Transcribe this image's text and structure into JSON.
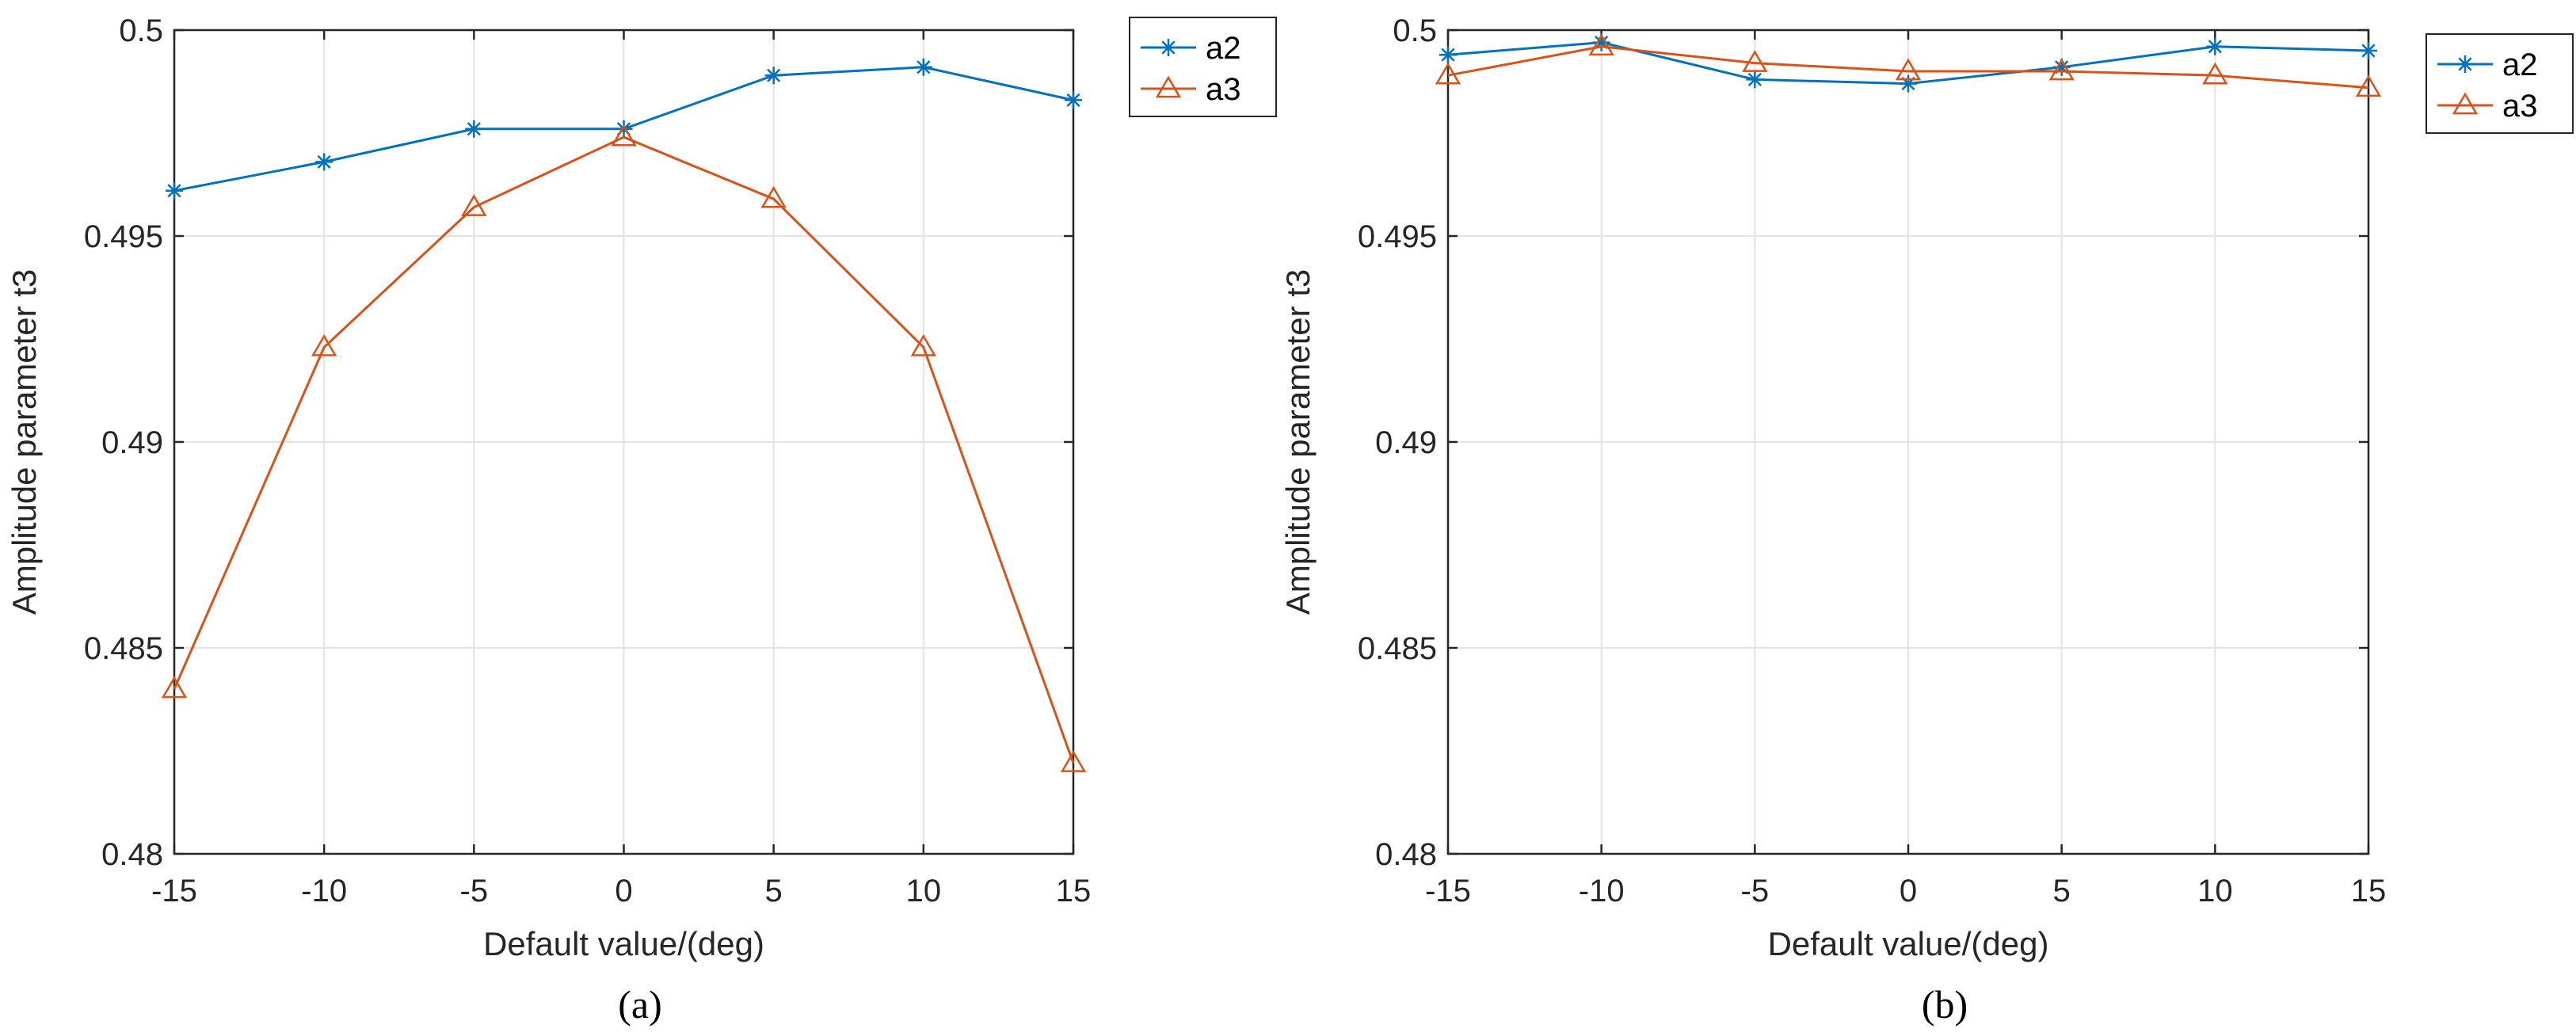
{
  "chart_data": [
    {
      "type": "line",
      "panel": "(a)",
      "xlabel": "Default value/(deg)",
      "ylabel": "Amplitude parameter t3",
      "x": [
        -15,
        -10,
        -5,
        0,
        5,
        10,
        15
      ],
      "xticks": [
        "-15",
        "-10",
        "-5",
        "0",
        "5",
        "10",
        "15"
      ],
      "yticks": [
        "0.48",
        "0.485",
        "0.49",
        "0.495",
        "0.5"
      ],
      "xlim": [
        -15,
        15
      ],
      "ylim": [
        0.48,
        0.5
      ],
      "grid": true,
      "legend_position": "outside-top-right",
      "series": [
        {
          "name": "a2",
          "color": "#0072BD",
          "marker": "star",
          "values": [
            0.4961,
            0.4968,
            0.4976,
            0.4976,
            0.4989,
            0.4991,
            0.4983
          ]
        },
        {
          "name": "a3",
          "color": "#D95319",
          "marker": "triangle",
          "values": [
            0.484,
            0.4923,
            0.4957,
            0.4974,
            0.4959,
            0.4923,
            0.4822
          ]
        }
      ]
    },
    {
      "type": "line",
      "panel": "(b)",
      "xlabel": "Default value/(deg)",
      "ylabel": "Amplitude parameter t3",
      "x": [
        -15,
        -10,
        -5,
        0,
        5,
        10,
        15
      ],
      "xticks": [
        "-15",
        "-10",
        "-5",
        "0",
        "5",
        "10",
        "15"
      ],
      "yticks": [
        "0.48",
        "0.485",
        "0.49",
        "0.495",
        "0.5"
      ],
      "xlim": [
        -15,
        15
      ],
      "ylim": [
        0.48,
        0.5
      ],
      "grid": true,
      "legend_position": "outside-top-right",
      "series": [
        {
          "name": "a2",
          "color": "#0072BD",
          "marker": "star",
          "values": [
            0.4994,
            0.4997,
            0.4988,
            0.4987,
            0.4991,
            0.4996,
            0.4995
          ]
        },
        {
          "name": "a3",
          "color": "#D95319",
          "marker": "triangle",
          "values": [
            0.4989,
            0.4996,
            0.4992,
            0.499,
            0.499,
            0.4989,
            0.4986
          ]
        }
      ]
    }
  ]
}
